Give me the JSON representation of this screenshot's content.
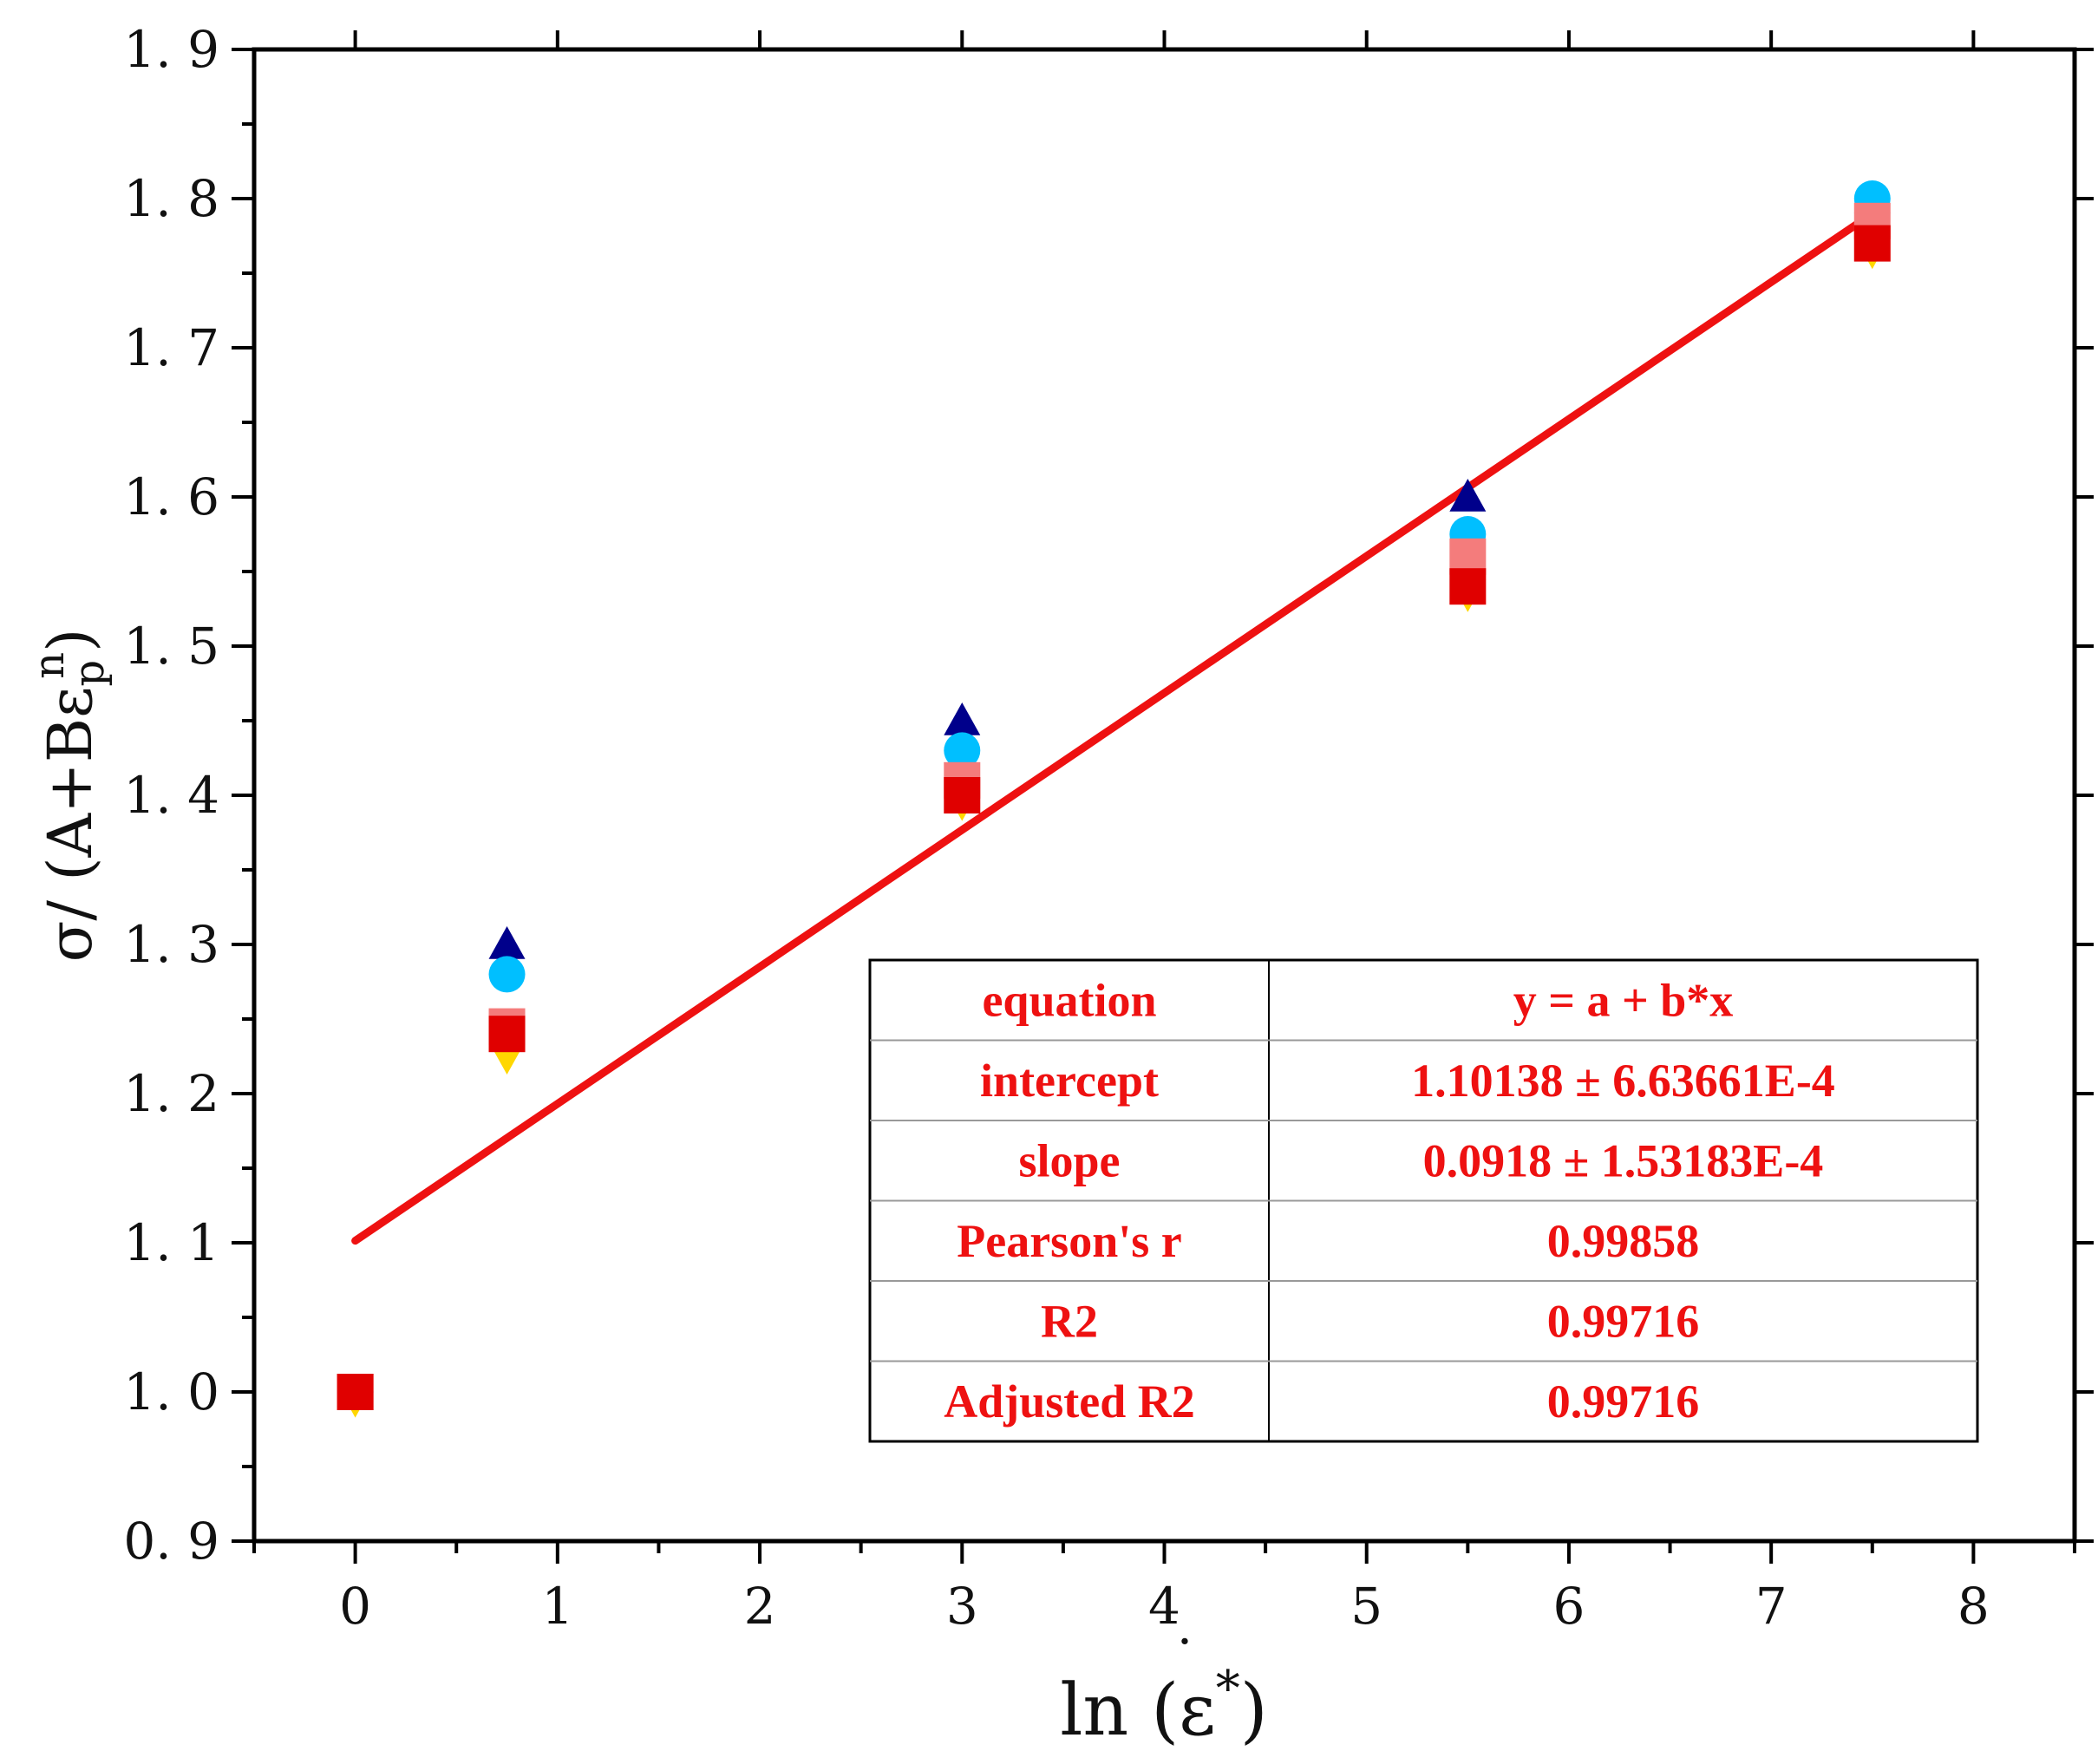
{
  "chart_data": {
    "type": "scatter",
    "title": "",
    "xlabel": {
      "base": "ln (",
      "symbol": "ε",
      "dot": "·",
      "sup": "*",
      "close": ")"
    },
    "ylabel": {
      "sigma": "σ",
      "rest": "/ (A+Bε",
      "sub": "p",
      "sup": "n",
      "close": ")"
    },
    "xlim": [
      -0.5,
      8.5
    ],
    "ylim": [
      0.9,
      1.9
    ],
    "x_ticks": [
      0,
      1,
      2,
      3,
      4,
      5,
      6,
      7,
      8
    ],
    "x_tick_labels": [
      "0",
      "1",
      "2",
      "3",
      "4",
      "5",
      "6",
      "7",
      "8"
    ],
    "y_ticks": [
      0.9,
      1.0,
      1.1,
      1.2,
      1.3,
      1.4,
      1.5,
      1.6,
      1.7,
      1.8,
      1.9
    ],
    "y_tick_labels": [
      "0. 9",
      "1. 0",
      "1. 1",
      "1. 2",
      "1. 3",
      "1. 4",
      "1. 5",
      "1. 6",
      "1. 7",
      "1. 8",
      "1. 9"
    ],
    "x_minor_ticks": [
      -0.5,
      0.5,
      1.5,
      2.5,
      3.5,
      4.5,
      5.5,
      6.5,
      7.5,
      8.5
    ],
    "y_minor_ticks": [
      0.95,
      1.05,
      1.15,
      1.25,
      1.35,
      1.45,
      1.55,
      1.65,
      1.75,
      1.85
    ],
    "series": [
      {
        "name": "triangle-up",
        "marker": "triangle-up",
        "color": "#00008b",
        "x": [
          0,
          0.75,
          3,
          5.5,
          7.5
        ],
        "y": [
          1.0,
          1.3,
          1.45,
          1.6,
          1.8
        ]
      },
      {
        "name": "circle",
        "marker": "circle",
        "color": "#00bfff",
        "x": [
          0,
          0.75,
          3,
          5.5,
          7.5
        ],
        "y": [
          1.0,
          1.28,
          1.43,
          1.575,
          1.8
        ]
      },
      {
        "name": "triangle-down",
        "marker": "triangle-down",
        "color": "#ffd700",
        "x": [
          0,
          0.75,
          3,
          5.5,
          7.5
        ],
        "y": [
          0.995,
          1.225,
          1.395,
          1.535,
          1.765
        ]
      },
      {
        "name": "square-light",
        "marker": "square",
        "color": "#f47c7c",
        "x": [
          0,
          0.75,
          3,
          5.5,
          7.5
        ],
        "y": [
          1.0,
          1.245,
          1.41,
          1.56,
          1.785
        ]
      },
      {
        "name": "square-red",
        "marker": "square",
        "color": "#e00000",
        "x": [
          0,
          0.75,
          3,
          5.5,
          7.5
        ],
        "y": [
          1.0,
          1.24,
          1.4,
          1.54,
          1.77
        ]
      }
    ],
    "fit_line": {
      "color": "#ee1111",
      "intercept": 1.10138,
      "slope": 0.0918,
      "x_range": [
        0,
        7.5
      ]
    },
    "fit_table": {
      "color": "#ee1111",
      "rows": [
        {
          "label": "equation",
          "value": "y = a + b*x"
        },
        {
          "label": "intercept",
          "value": "1.10138 ± 6.63661E-4"
        },
        {
          "label": "slope",
          "value": "0.0918 ± 1.53183E-4"
        },
        {
          "label": "Pearson's r",
          "value": "0.99858"
        },
        {
          "label": "R2",
          "value": "0.99716"
        },
        {
          "label": "Adjusted R2",
          "value": "0.99716"
        }
      ]
    }
  }
}
